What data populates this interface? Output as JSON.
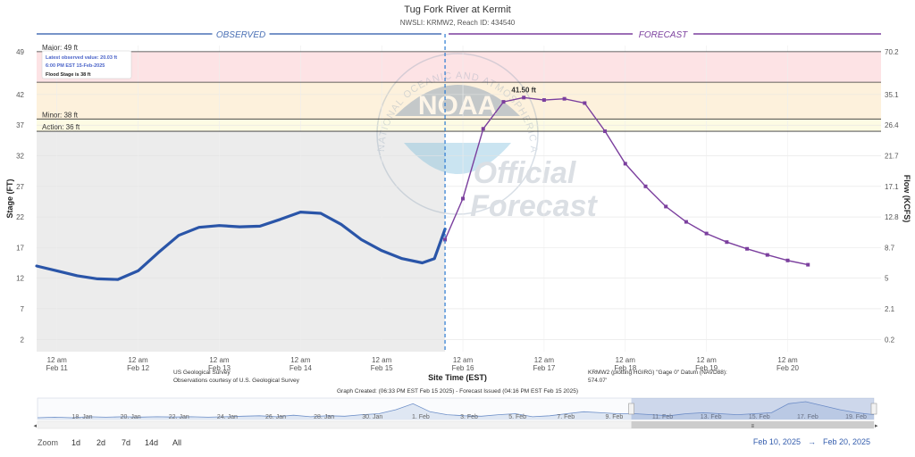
{
  "chart_data": {
    "type": "line",
    "title": "Tug Fork River at Kermit",
    "subtitle": "NWSLI: KRMW2, Reach ID: 434540",
    "ylabel": "Stage (FT)",
    "ylabel_right": "Flow (KCFS)",
    "xlabel": "Site Time (EST)",
    "ylim": [
      0,
      50
    ],
    "y_ticks": [
      2,
      7,
      12,
      17,
      22,
      27,
      32,
      37,
      42,
      49
    ],
    "y_ticks_right": [
      "0.2",
      "2.1",
      "5",
      "8.7",
      "12.8",
      "17.1",
      "21.7",
      "26.4",
      "35.1",
      "70.2"
    ],
    "xlim": [
      0,
      10.4
    ],
    "x_ticks": [
      {
        "x": 0.25,
        "top": "12 am",
        "bottom": "Feb 11"
      },
      {
        "x": 1.25,
        "top": "12 am",
        "bottom": "Feb 12"
      },
      {
        "x": 2.25,
        "top": "12 am",
        "bottom": "Feb 13"
      },
      {
        "x": 3.25,
        "top": "12 am",
        "bottom": "Feb 14"
      },
      {
        "x": 4.25,
        "top": "12 am",
        "bottom": "Feb 15"
      },
      {
        "x": 5.25,
        "top": "12 am",
        "bottom": "Feb 16"
      },
      {
        "x": 6.25,
        "top": "12 am",
        "bottom": "Feb 17"
      },
      {
        "x": 7.25,
        "top": "12 am",
        "bottom": "Feb 18"
      },
      {
        "x": 8.25,
        "top": "12 am",
        "bottom": "Feb 19"
      },
      {
        "x": 9.25,
        "top": "12 am",
        "bottom": "Feb 20"
      }
    ],
    "observed_label": "OBSERVED",
    "forecast_label": "FORECAST",
    "split_x": 5.03,
    "thresholds": [
      {
        "name": "Major",
        "label": "Major: 49 ft",
        "value": 49,
        "band_from": 44,
        "band_color": "#fde3e5"
      },
      {
        "name": "Moderate",
        "label": "",
        "value": 44,
        "band_from": 38,
        "band_color": "#fdf1dc"
      },
      {
        "name": "Minor",
        "label": "Minor: 38 ft",
        "value": 38,
        "band_from": 36,
        "band_color": "#fdfbe3"
      },
      {
        "name": "Action",
        "label": "Action: 36 ft",
        "value": 36,
        "band_from": 0,
        "band_color": "#ececec"
      }
    ],
    "series": [
      {
        "name": "Observed",
        "color": "#2a55a8",
        "x": [
          0.0,
          0.25,
          0.5,
          0.75,
          1.0,
          1.25,
          1.5,
          1.75,
          2.0,
          2.25,
          2.5,
          2.75,
          3.0,
          3.25,
          3.5,
          3.75,
          4.0,
          4.25,
          4.5,
          4.75,
          4.9,
          5.03
        ],
        "y": [
          14.0,
          13.2,
          12.4,
          11.9,
          11.8,
          13.2,
          16.2,
          19.0,
          20.3,
          20.6,
          20.4,
          20.5,
          21.6,
          22.8,
          22.6,
          20.8,
          18.3,
          16.5,
          15.2,
          14.5,
          15.2,
          20.03
        ]
      },
      {
        "name": "Forecast",
        "color": "#7b3f9e",
        "x": [
          5.03,
          5.25,
          5.5,
          5.75,
          6.0,
          6.25,
          6.5,
          6.75,
          7.0,
          7.25,
          7.5,
          7.75,
          8.0,
          8.25,
          8.5,
          8.75,
          9.0,
          9.25,
          9.5
        ],
        "y": [
          18.3,
          25.0,
          36.4,
          40.8,
          41.5,
          41.1,
          41.3,
          40.6,
          36.0,
          30.7,
          27.0,
          23.7,
          21.2,
          19.3,
          17.9,
          16.8,
          15.8,
          14.9,
          14.2
        ]
      }
    ],
    "peak_label": "41.50 ft",
    "peak_point": {
      "x": 6.0,
      "y": 41.5
    },
    "tooltip": {
      "line1": "Latest observed value: 20.03 ft",
      "line2": "6:00 PM EST 15-Feb-2025",
      "line3": "Flood Stage is 38 ft"
    },
    "credits": {
      "usgs_line1": "US Geological Survey",
      "usgs_line2": "Observations courtesy of U.S. Geological Survey",
      "datum_line1": "KRMW2 (plotting HGIRG) \"Gage 0\" Datum (NAVD88):",
      "datum_line2": "574.07'",
      "created": "Graph Created: (06:33 PM EST Feb 15 2025) - Forecast Issued (04:16 PM EST Feb 15 2025)"
    },
    "watermark": {
      "logo": "NOAA",
      "ring": "NATIONAL OCEANIC AND ATMOSPHERIC ADMINISTRATION · U.S. DEPARTMENT OF COMMERCE",
      "line1": "Official",
      "line2": "Forecast"
    },
    "navigator": {
      "labels": [
        "18. Jan",
        "20. Jan",
        "22. Jan",
        "24. Jan",
        "26. Jan",
        "28. Jan",
        "30. Jan",
        "1. Feb",
        "3. Feb",
        "5. Feb",
        "7. Feb",
        "9. Feb",
        "11. Feb",
        "13. Feb",
        "15. Feb",
        "17. Feb",
        "19. Feb"
      ],
      "values": [
        8,
        8.5,
        8,
        9,
        8.5,
        9,
        8.6,
        9,
        8.7,
        9,
        8.5,
        9,
        9.5,
        10,
        9,
        10.5,
        9,
        10,
        9.5,
        11,
        12,
        16,
        22,
        14,
        11,
        10,
        9.5,
        11,
        12,
        9,
        10,
        12,
        14,
        13,
        12,
        12,
        11,
        10,
        12,
        13,
        12,
        11,
        12,
        13,
        22,
        24,
        20,
        16,
        13,
        11
      ],
      "selected_from": 0.71,
      "selected_to": 1.0
    }
  },
  "zoom": {
    "label": "Zoom",
    "options": [
      "1d",
      "2d",
      "7d",
      "14d",
      "All"
    ]
  },
  "range": {
    "from": "Feb 10, 2025",
    "arrow": "→",
    "to": "Feb 20, 2025"
  }
}
